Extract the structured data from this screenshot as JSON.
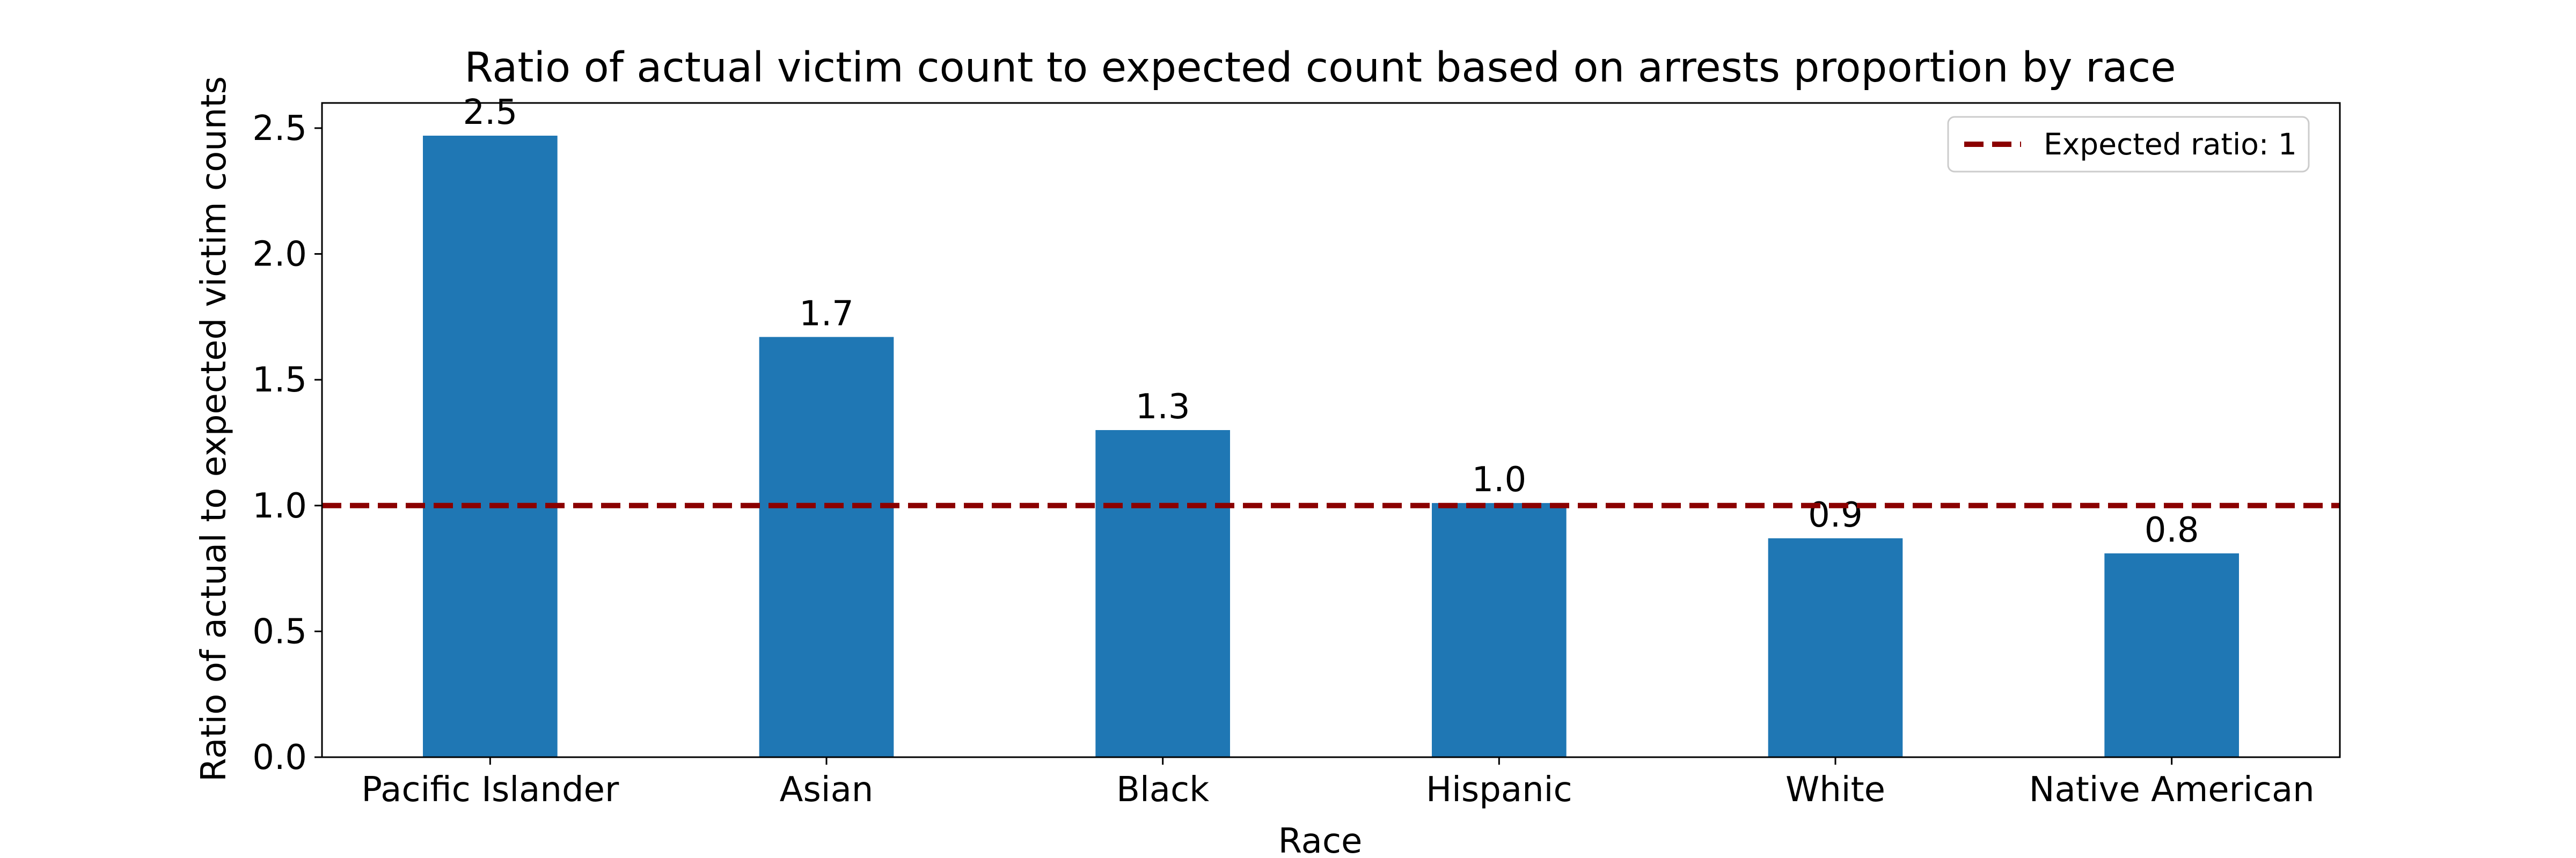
{
  "chart_data": {
    "type": "bar",
    "title": "Ratio of actual victim count to expected count based on arrests proportion by race",
    "xlabel": "Race",
    "ylabel": "Ratio of actual to expected victim counts",
    "categories": [
      "Pacific Islander",
      "Asian",
      "Black",
      "Hispanic",
      "White",
      "Native American"
    ],
    "values": [
      2.47,
      1.67,
      1.3,
      1.01,
      0.87,
      0.81
    ],
    "value_labels": [
      "2.5",
      "1.7",
      "1.3",
      "1.0",
      "0.9",
      "0.8"
    ],
    "ylim": [
      0,
      2.6
    ],
    "yticks": [
      0.0,
      0.5,
      1.0,
      1.5,
      2.0,
      2.5
    ],
    "ytick_labels": [
      "0.0",
      "0.5",
      "1.0",
      "1.5",
      "2.0",
      "2.5"
    ],
    "bar_color": "#1f77b4",
    "reference_line": {
      "value": 1,
      "label": "Expected ratio: 1",
      "color": "#8b0000",
      "style": "dashed"
    },
    "legend_position": "top-right",
    "grid": false
  }
}
